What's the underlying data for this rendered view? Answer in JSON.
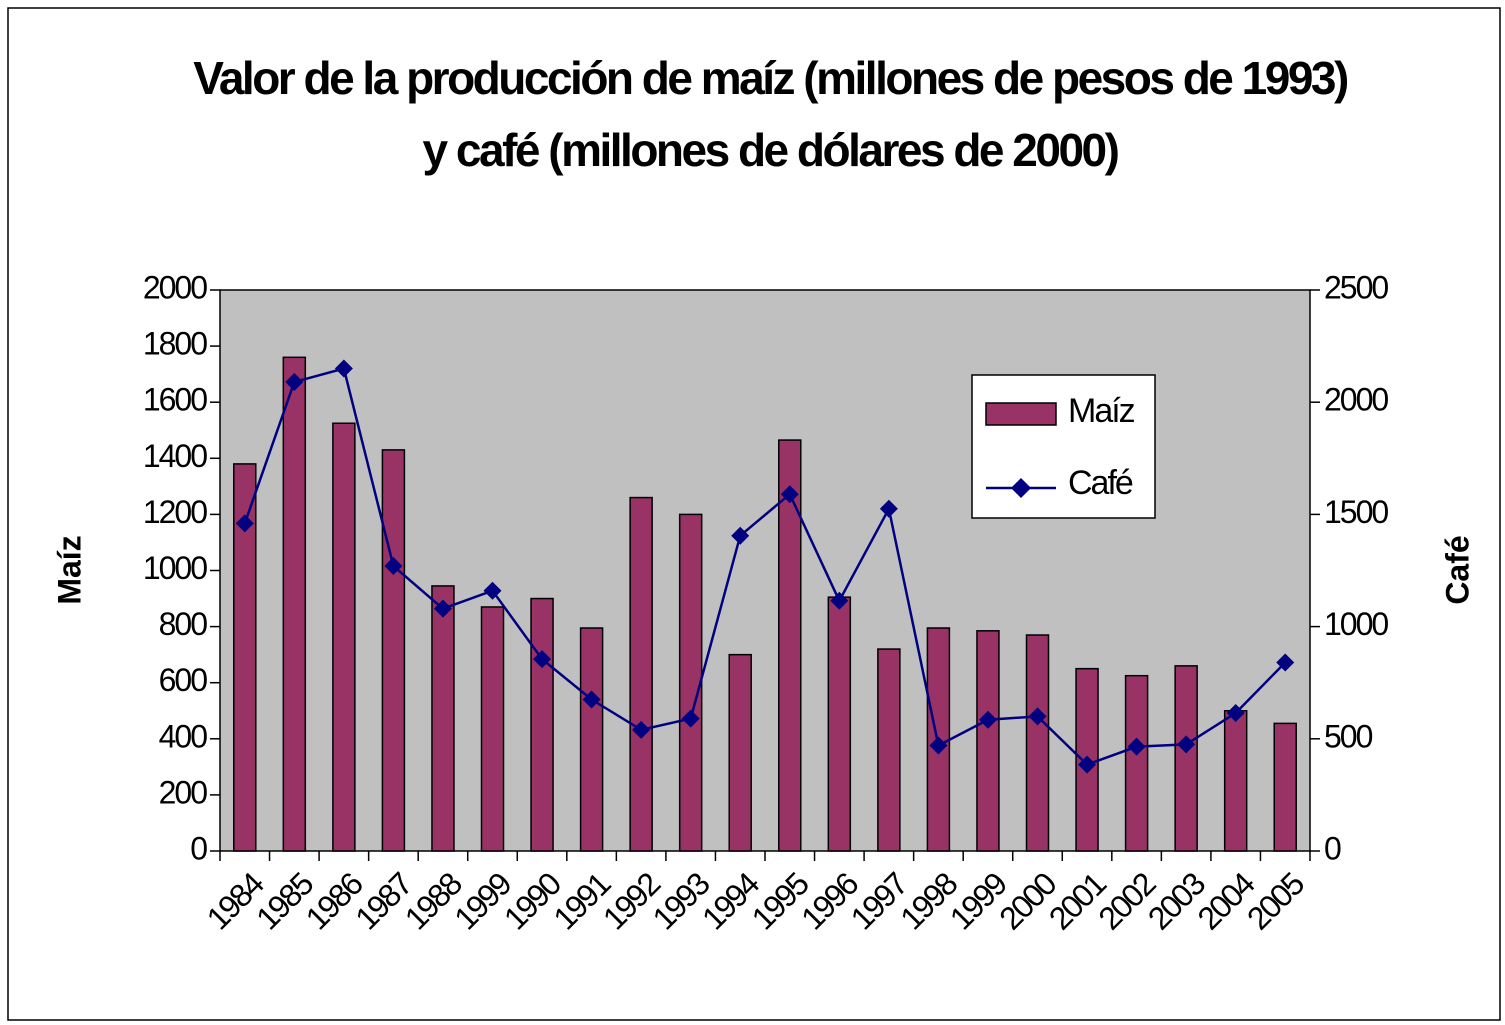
{
  "chart_data": {
    "type": "bar-line",
    "title": "Valor de la producción de maíz (millones de pesos de 1993) y café (millones de dólares de 2000)",
    "y_label": "Maíz",
    "y2_label": "Café",
    "categories": [
      "1984",
      "1985",
      "1986",
      "1987",
      "1988",
      "1999",
      "1990",
      "1991",
      "1992",
      "1993",
      "1994",
      "1995",
      "1996",
      "1997",
      "1998",
      "1999",
      "2000",
      "2001",
      "2002",
      "2003",
      "2004",
      "2005"
    ],
    "series": [
      {
        "name": "Maíz",
        "type": "bar",
        "color": "#993366",
        "axis": "y",
        "values": [
          1380,
          1760,
          1525,
          1430,
          945,
          870,
          900,
          795,
          1260,
          1200,
          700,
          1465,
          905,
          720,
          795,
          785,
          770,
          650,
          625,
          660,
          500,
          455
        ]
      },
      {
        "name": "Café",
        "type": "line",
        "color": "#000080",
        "axis": "y2",
        "values": [
          1460,
          2090,
          2150,
          1270,
          1080,
          1160,
          855,
          675,
          540,
          590,
          1405,
          1590,
          1115,
          1525,
          470,
          585,
          600,
          385,
          465,
          475,
          615,
          840
        ]
      }
    ],
    "ylim": [
      0,
      2000
    ],
    "yticks": [
      0,
      200,
      400,
      600,
      800,
      1000,
      1200,
      1400,
      1600,
      1800,
      2000
    ],
    "y2lim": [
      0,
      2500
    ],
    "y2ticks": [
      0,
      500,
      1000,
      1500,
      2000,
      2500
    ],
    "plot_background": "#c0c0c0",
    "legend": "upper right"
  }
}
